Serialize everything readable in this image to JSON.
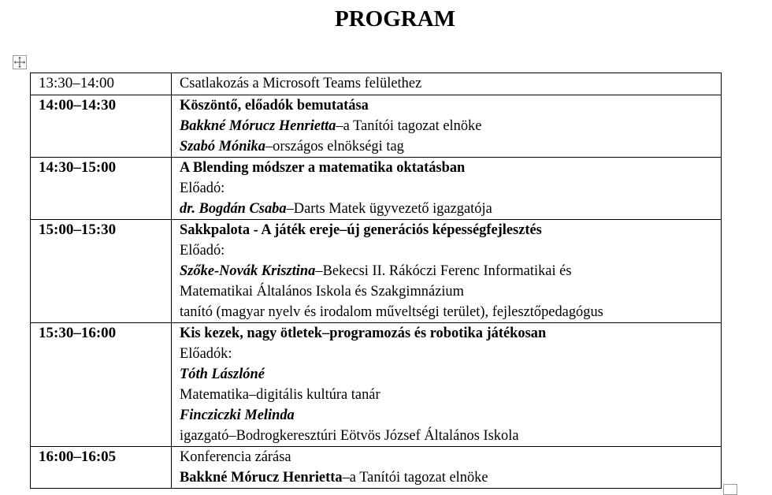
{
  "document": {
    "title": "PROGRAM",
    "rows": [
      {
        "time": "13:30–14:00",
        "time_bold": false,
        "lines": [
          [
            {
              "text": "Csatlakozás a Microsoft Teams felülethez",
              "style": ""
            }
          ]
        ]
      },
      {
        "time": "14:00–14:30",
        "time_bold": true,
        "lines": [
          [
            {
              "text": "Köszöntő, előadók bemutatása",
              "style": "b"
            }
          ],
          [
            {
              "text": "Bakkné Mórucz Henrietta",
              "style": "b i"
            },
            {
              "text": "–a Tanítói tagozat elnöke",
              "style": ""
            }
          ],
          [
            {
              "text": "Szabó Mónika",
              "style": "b i"
            },
            {
              "text": "–országos elnökségi tag",
              "style": ""
            }
          ]
        ]
      },
      {
        "time": "14:30–15:00",
        "time_bold": true,
        "lines": [
          [
            {
              "text": "A Blending módszer a matematika oktatásban",
              "style": "b"
            }
          ],
          [
            {
              "text": "Előadó:",
              "style": ""
            }
          ],
          [
            {
              "text": "dr. Bogdán Csaba",
              "style": "b i"
            },
            {
              "text": "–Darts Matek ügyvezető igazgatója",
              "style": ""
            }
          ]
        ]
      },
      {
        "time": "15:00–15:30",
        "time_bold": true,
        "lines": [
          [
            {
              "text": "Sakkpalota - A játék ereje–új generációs képességfejlesztés",
              "style": "b"
            }
          ],
          [
            {
              "text": "Előadó:",
              "style": ""
            }
          ],
          [
            {
              "text": "Szőke-Novák Krisztina",
              "style": "b i"
            },
            {
              "text": "–Bekecsi II. Rákóczi Ferenc Informatikai és",
              "style": ""
            }
          ],
          [
            {
              "text": "Matematikai Általános Iskola és Szakgimnázium",
              "style": ""
            }
          ],
          [
            {
              "text": "tanító (magyar nyelv és irodalom műveltségi terület), fejlesztőpedagógus",
              "style": ""
            }
          ]
        ]
      },
      {
        "time": "15:30–16:00",
        "time_bold": true,
        "lines": [
          [
            {
              "text": "Kis kezek, nagy ötletek–programozás és robotika játékosan",
              "style": "b"
            }
          ],
          [
            {
              "text": "Előadók:",
              "style": ""
            }
          ],
          [
            {
              "text": "Tóth Lászlóné",
              "style": "b i"
            }
          ],
          [
            {
              "text": "Matematika–digitális kultúra tanár",
              "style": ""
            }
          ],
          [
            {
              "text": "Fincziczki Melinda",
              "style": "b i"
            }
          ],
          [
            {
              "text": "igazgató–Bodrogkeresztúri Eötvös József Általános Iskola",
              "style": ""
            }
          ]
        ]
      },
      {
        "time": "16:00–16:05",
        "time_bold": true,
        "lines": [
          [
            {
              "text": "Konferencia zárása",
              "style": ""
            }
          ],
          [
            {
              "text": "Bakkné Mórucz Henrietta",
              "style": "b"
            },
            {
              "text": "–a Tanítói tagozat elnöke",
              "style": ""
            }
          ]
        ]
      }
    ]
  },
  "icons": {
    "move": "table-move-handle-icon",
    "resize": "table-resize-handle-icon"
  }
}
